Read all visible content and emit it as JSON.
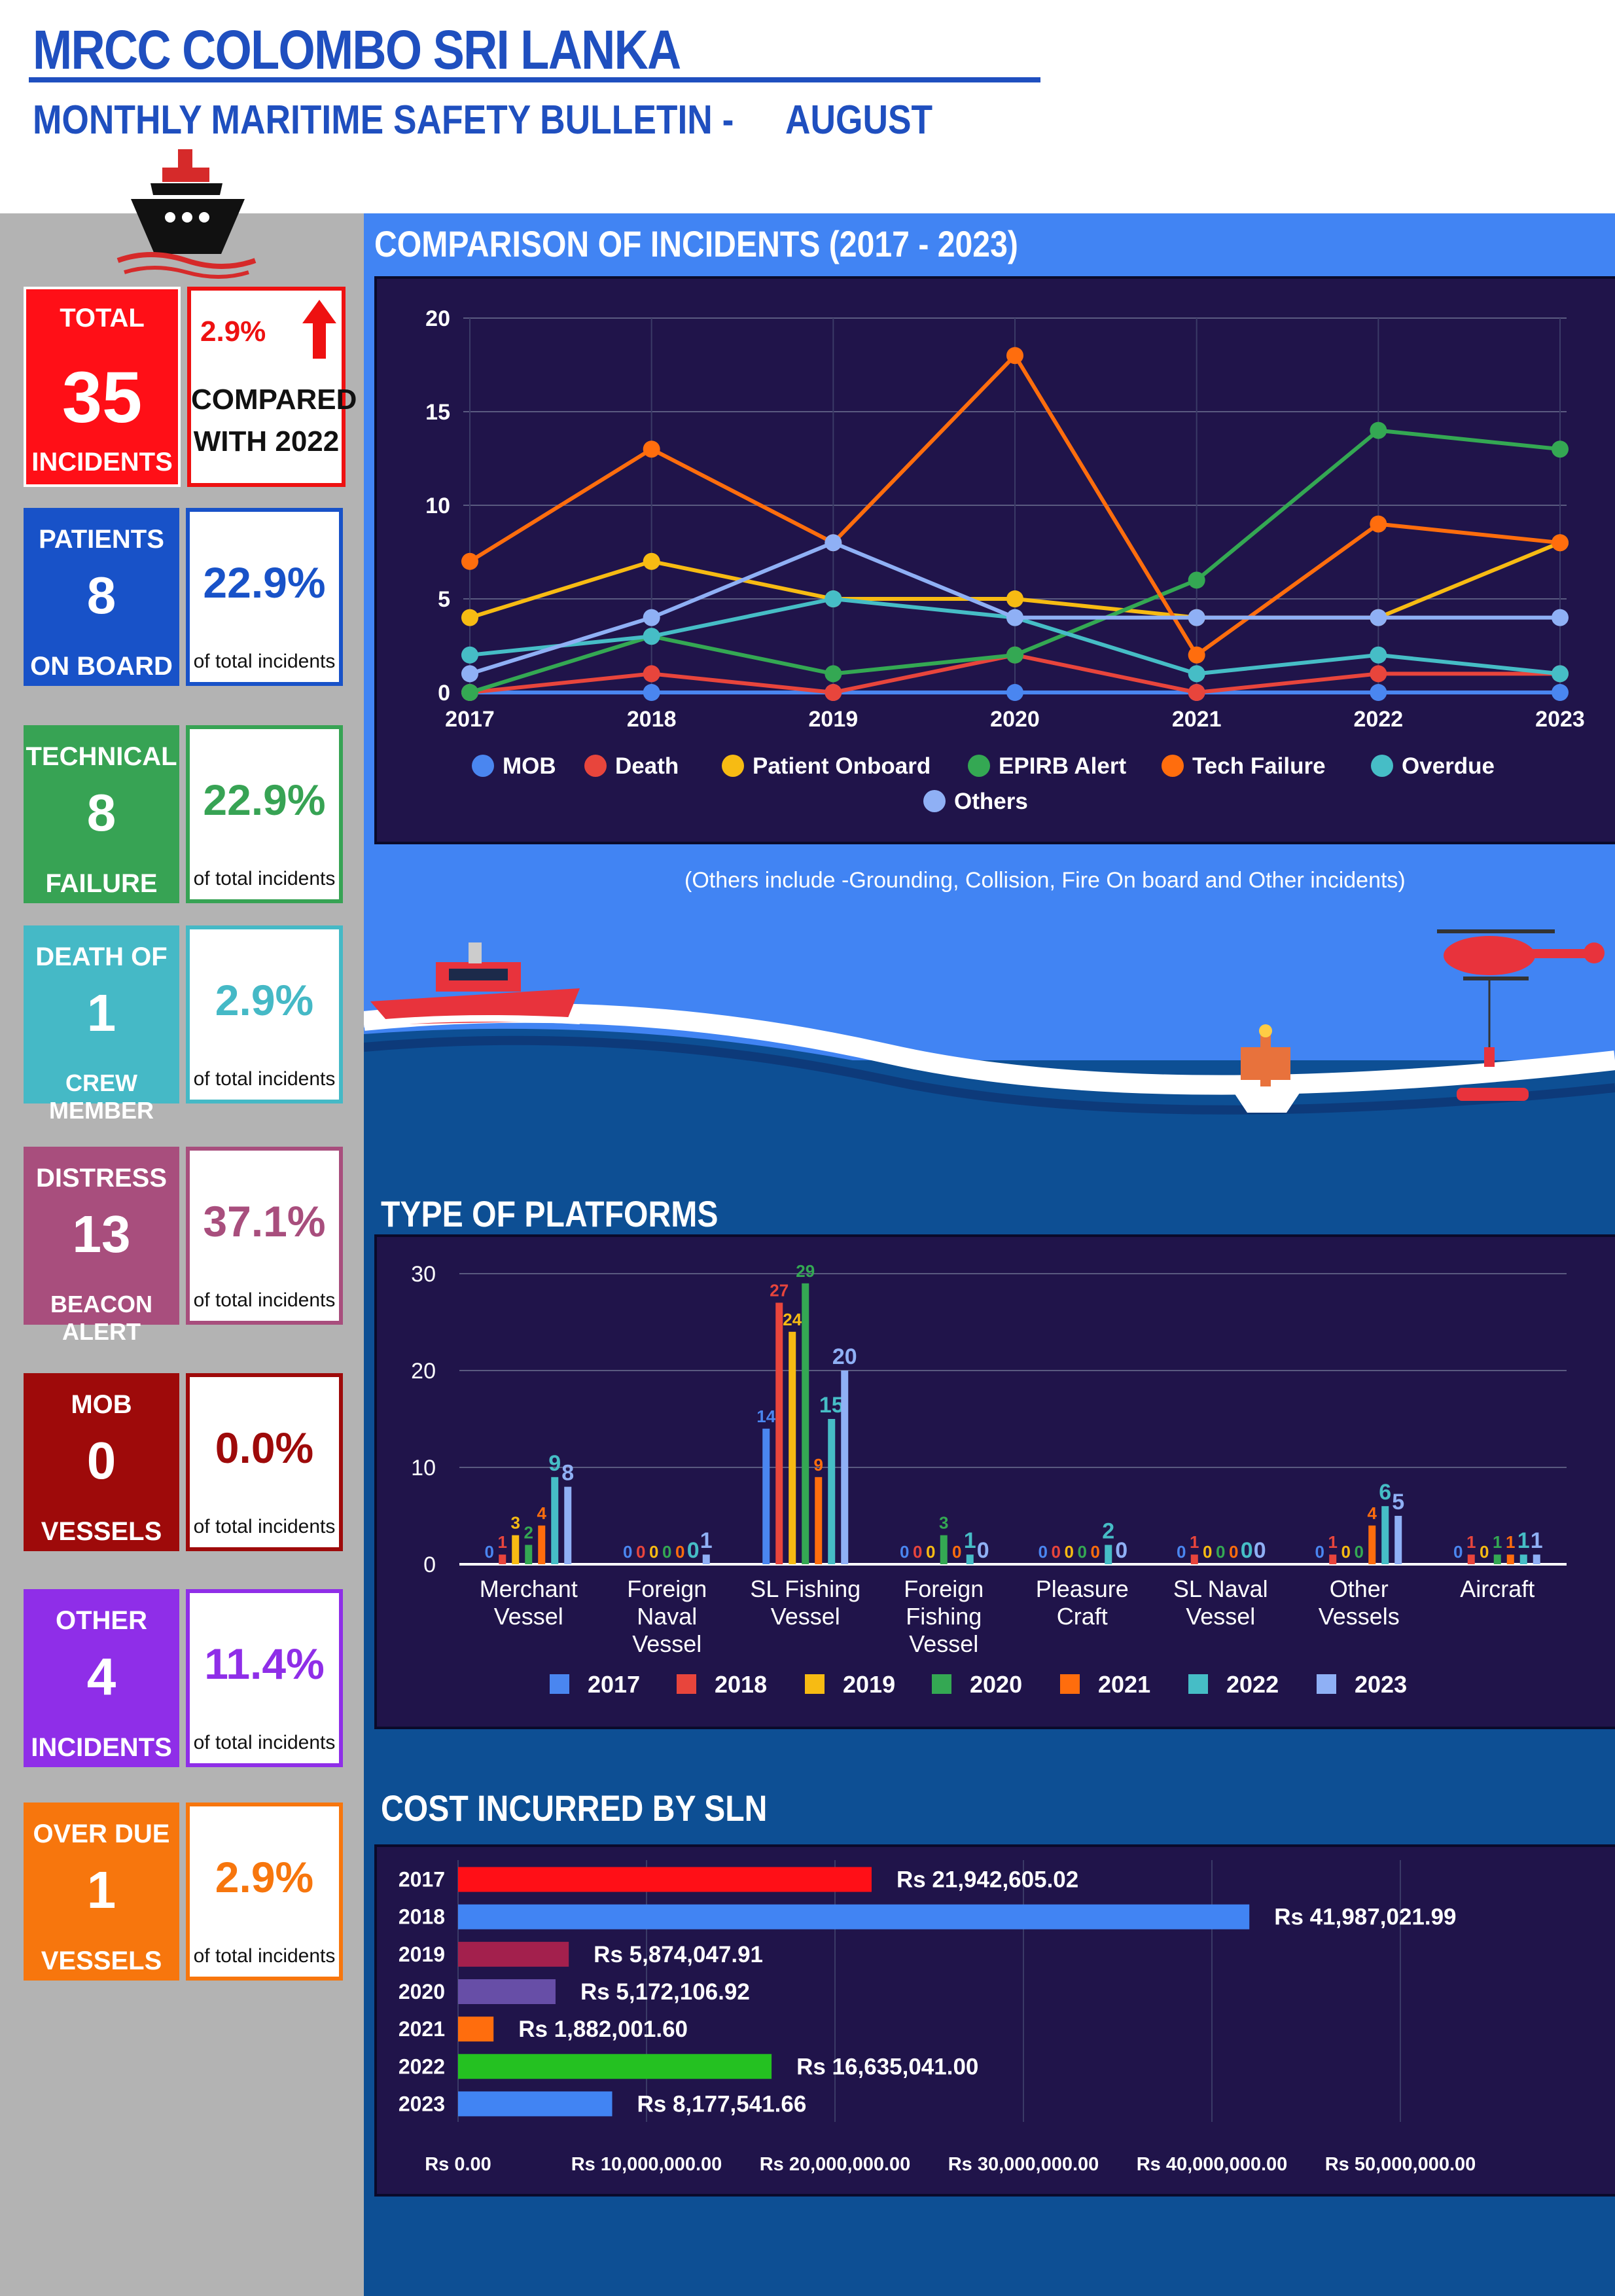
{
  "header": {
    "title": "MRCC COLOMBO SRI LANKA",
    "subtitle": "MONTHLY MARITIME SAFETY BULLETIN -",
    "month": "AUGUST"
  },
  "colors": {
    "header_blue": "#1f4fbf",
    "panel_blue": "#4184f3",
    "panel_dark": "#0d4f94",
    "chart_bg": "#20144a"
  },
  "icons": {
    "ship": "ship-icon",
    "trend": "arrow-up-icon"
  },
  "summary": {
    "total": {
      "line1": "TOTAL",
      "value": "35",
      "line3": "INCIDENTS"
    },
    "change": {
      "percent": "2.9%",
      "line1": "COMPARED",
      "line2": "WITH 2022"
    },
    "categories": [
      {
        "line1": "PATIENTS",
        "value": "8",
        "line3": "ON BOARD",
        "percent": "22.9%",
        "note": "of total incidents",
        "color": "#1852c8"
      },
      {
        "line1": "TECHNICAL",
        "value": "8",
        "line3": "FAILURE",
        "percent": "22.9%",
        "note": "of total incidents",
        "color": "#37a354"
      },
      {
        "line1": "DEATH OF",
        "value": "1",
        "line3": "CREW MEMBER",
        "percent": "2.9%",
        "note": "of total incidents",
        "color": "#45b9c6"
      },
      {
        "line1": "DISTRESS",
        "value": "13",
        "line3": "BEACON ALERT",
        "percent": "37.1%",
        "note": "of total incidents",
        "color": "#a84e7d"
      },
      {
        "line1": "MOB",
        "value": "0",
        "line3": "VESSELS",
        "percent": "0.0%",
        "note": "of total incidents",
        "color": "#9e0a0a"
      },
      {
        "line1": "OTHER",
        "value": "4",
        "line3": "INCIDENTS",
        "percent": "11.4%",
        "note": "of total incidents",
        "color": "#8f2ee8"
      },
      {
        "line1": "OVER DUE",
        "value": "1",
        "line3": "VESSELS",
        "percent": "2.9%",
        "note": "of total incidents",
        "color": "#f7760d"
      }
    ]
  },
  "note": "(Others include -Grounding, Collision, Fire On board and Other incidents)",
  "chart_data": [
    {
      "type": "line",
      "title": "COMPARISON OF INCIDENTS (2017 - 2023)",
      "x": [
        "2017",
        "2018",
        "2019",
        "2020",
        "2021",
        "2022",
        "2023"
      ],
      "ylim": [
        0,
        20
      ],
      "yticks": [
        "0",
        "5",
        "10",
        "15",
        "20"
      ],
      "grid": true,
      "legend": "bottom",
      "series": [
        {
          "name": "MOB",
          "color": "#4a86f0",
          "values": [
            0,
            0,
            0,
            0,
            0,
            0,
            0
          ]
        },
        {
          "name": "Death",
          "color": "#e8453c",
          "values": [
            0,
            1,
            0,
            2,
            0,
            1,
            1
          ]
        },
        {
          "name": "Patient Onboard",
          "color": "#f7bb13",
          "values": [
            4,
            7,
            5,
            5,
            4,
            4,
            8
          ]
        },
        {
          "name": "EPIRB Alert",
          "color": "#34a853",
          "values": [
            0,
            3,
            1,
            2,
            6,
            14,
            13
          ]
        },
        {
          "name": "Tech Failure",
          "color": "#ff6d0d",
          "values": [
            7,
            13,
            8,
            18,
            2,
            9,
            8
          ]
        },
        {
          "name": "Overdue",
          "color": "#46bdc6",
          "values": [
            2,
            3,
            5,
            4,
            1,
            2,
            1
          ]
        },
        {
          "name": "Others",
          "color": "#8fb0f5",
          "values": [
            1,
            4,
            8,
            4,
            4,
            4,
            4
          ]
        }
      ]
    },
    {
      "type": "bar",
      "title": "TYPE OF PLATFORMS",
      "categories": [
        [
          "Merchant",
          "Vessel"
        ],
        [
          "Foreign",
          "Naval",
          "Vessel"
        ],
        [
          "SL Fishing",
          "Vessel"
        ],
        [
          "Foreign",
          "Fishing",
          "Vessel"
        ],
        [
          "Pleasure",
          "Craft"
        ],
        [
          "SL Naval",
          "Vessel"
        ],
        [
          "Other",
          "Vessels"
        ],
        [
          "Aircraft"
        ]
      ],
      "ylim": [
        0,
        30
      ],
      "yticks": [
        "0",
        "10",
        "20",
        "30"
      ],
      "grid": true,
      "legend": "bottom",
      "series": [
        {
          "name": "2017",
          "color": "#4a86f0",
          "values": [
            0,
            0,
            14,
            0,
            0,
            0,
            0,
            0
          ]
        },
        {
          "name": "2018",
          "color": "#e8453c",
          "values": [
            1,
            0,
            27,
            0,
            0,
            1,
            1,
            1
          ]
        },
        {
          "name": "2019",
          "color": "#f7bb13",
          "values": [
            3,
            0,
            24,
            0,
            0,
            0,
            0,
            0
          ]
        },
        {
          "name": "2020",
          "color": "#34a853",
          "values": [
            2,
            0,
            29,
            3,
            0,
            0,
            0,
            1
          ]
        },
        {
          "name": "2021",
          "color": "#ff6d0d",
          "values": [
            4,
            0,
            9,
            0,
            0,
            0,
            4,
            1
          ]
        },
        {
          "name": "2022",
          "color": "#46bdc6",
          "values": [
            9,
            0,
            15,
            1,
            2,
            0,
            6,
            1
          ]
        },
        {
          "name": "2023",
          "color": "#8fb0f5",
          "values": [
            8,
            1,
            20,
            0,
            0,
            0,
            5,
            1
          ]
        }
      ]
    },
    {
      "type": "bar",
      "orientation": "horizontal",
      "title": "COST INCURRED BY SLN",
      "categories": [
        "2017",
        "2018",
        "2019",
        "2020",
        "2021",
        "2022",
        "2023"
      ],
      "values": [
        21942605.02,
        41987021.99,
        5874047.91,
        5172106.92,
        1882001.6,
        16635041.0,
        8177541.66
      ],
      "labels": [
        "Rs 21,942,605.02",
        "Rs 41,987,021.99",
        "Rs 5,874,047.91",
        "Rs 5,172,106.92",
        "Rs 1,882,001.60",
        "Rs 16,635,041.00",
        "Rs 8,177,541.66"
      ],
      "colors": [
        "#ff0f17",
        "#4184f3",
        "#a3204d",
        "#674ea7",
        "#ff6d0d",
        "#24c121",
        "#4184f3"
      ],
      "xlim": [
        0,
        50000000
      ],
      "xticks": [
        "Rs 0.00",
        "Rs 10,000,000.00",
        "Rs 20,000,000.00",
        "Rs 30,000,000.00",
        "Rs 40,000,000.00",
        "Rs 50,000,000.00"
      ],
      "grid": true
    }
  ]
}
